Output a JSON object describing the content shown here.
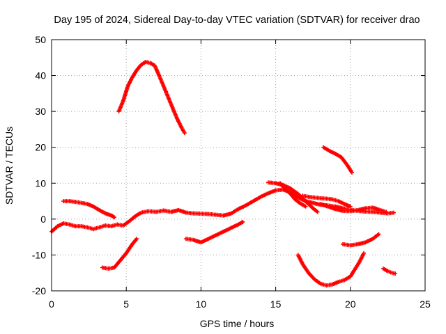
{
  "chart_data": {
    "type": "scatter",
    "title": "Day 195 of 2024, Sidereal Day-to-day VTEC variation (SDTVAR) for receiver drao",
    "xlabel": "GPS time / hours",
    "ylabel": "SDTVAR / TECUs",
    "xlim": [
      0,
      25
    ],
    "ylim": [
      -20,
      50
    ],
    "xticks": [
      0,
      5,
      10,
      15,
      20,
      25
    ],
    "yticks": [
      -20,
      -10,
      0,
      10,
      20,
      30,
      40,
      50
    ],
    "grid": true,
    "legend": "none",
    "marker_color": "#ff0000",
    "series": [
      {
        "name": "arc 1",
        "points": [
          [
            0,
            -3.5
          ],
          [
            0.4,
            -2
          ],
          [
            0.8,
            -1.2
          ],
          [
            1.2,
            -1.5
          ],
          [
            1.6,
            -2
          ],
          [
            2,
            -2
          ],
          [
            2.4,
            -2.3
          ],
          [
            2.8,
            -2.8
          ],
          [
            3.2,
            -2.3
          ],
          [
            3.6,
            -1.8
          ],
          [
            4,
            -2
          ],
          [
            4.4,
            -1.5
          ],
          [
            4.8,
            -1.8
          ],
          [
            5.2,
            -0.6
          ],
          [
            5.6,
            0.8
          ],
          [
            6,
            1.8
          ],
          [
            6.5,
            2.2
          ],
          [
            7,
            2
          ],
          [
            7.5,
            2.4
          ],
          [
            8,
            2
          ],
          [
            8.5,
            2.5
          ],
          [
            9,
            1.8
          ],
          [
            9.5,
            1.6
          ],
          [
            10,
            1.5
          ],
          [
            10.5,
            1.4
          ],
          [
            11,
            1.2
          ],
          [
            11.5,
            1
          ],
          [
            12,
            1.5
          ],
          [
            12.5,
            2.8
          ],
          [
            13,
            3.8
          ],
          [
            13.5,
            5
          ],
          [
            14,
            6.2
          ],
          [
            14.5,
            7.2
          ],
          [
            15,
            8
          ],
          [
            15.5,
            8.2
          ],
          [
            16,
            7.5
          ],
          [
            16.5,
            6
          ],
          [
            17,
            5
          ],
          [
            17.5,
            4.5
          ],
          [
            18,
            4
          ],
          [
            18.5,
            3.8
          ],
          [
            19,
            3.5
          ],
          [
            19.5,
            3
          ],
          [
            20,
            2.6
          ],
          [
            20.5,
            2.3
          ],
          [
            21,
            2.1
          ],
          [
            21.5,
            2
          ],
          [
            22,
            1.8
          ],
          [
            22.5,
            1.6
          ],
          [
            22.9,
            1.8
          ]
        ]
      },
      {
        "name": "arc 2",
        "points": [
          [
            0.8,
            5
          ],
          [
            1.2,
            5
          ],
          [
            1.6,
            4.8
          ],
          [
            2,
            4.5
          ],
          [
            2.4,
            4.2
          ],
          [
            2.8,
            3.5
          ],
          [
            3.2,
            2.5
          ],
          [
            3.6,
            1.6
          ],
          [
            4,
            1
          ],
          [
            4.2,
            0.5
          ]
        ]
      },
      {
        "name": "arc 3",
        "points": [
          [
            3.4,
            -13.5
          ],
          [
            3.8,
            -13.8
          ],
          [
            4.2,
            -13.5
          ],
          [
            4.6,
            -11.5
          ],
          [
            5,
            -9.5
          ],
          [
            5.4,
            -7
          ],
          [
            5.7,
            -5.5
          ]
        ]
      },
      {
        "name": "arc 4",
        "points": [
          [
            4.5,
            30
          ],
          [
            4.8,
            33
          ],
          [
            5.1,
            37
          ],
          [
            5.4,
            39.5
          ],
          [
            5.7,
            41.5
          ],
          [
            6,
            43
          ],
          [
            6.3,
            43.8
          ],
          [
            6.6,
            43.5
          ],
          [
            6.9,
            42.8
          ],
          [
            7.2,
            40
          ],
          [
            7.5,
            37
          ],
          [
            7.8,
            34
          ],
          [
            8.1,
            31
          ],
          [
            8.4,
            28
          ],
          [
            8.7,
            25.5
          ],
          [
            8.9,
            24
          ]
        ]
      },
      {
        "name": "arc 5",
        "points": [
          [
            9,
            -5.5
          ],
          [
            9.5,
            -5.8
          ],
          [
            10,
            -6.5
          ],
          [
            10.5,
            -5.5
          ],
          [
            11,
            -4.5
          ],
          [
            11.5,
            -3.5
          ],
          [
            12,
            -2.5
          ],
          [
            12.5,
            -1.5
          ],
          [
            12.8,
            -0.8
          ]
        ]
      },
      {
        "name": "arc 6",
        "points": [
          [
            14.5,
            10.2
          ],
          [
            15,
            10
          ],
          [
            15.5,
            9.5
          ],
          [
            16,
            8.5
          ],
          [
            16.5,
            7
          ],
          [
            17,
            5
          ],
          [
            17.5,
            3
          ],
          [
            17.8,
            2
          ]
        ]
      },
      {
        "name": "arc 7",
        "points": [
          [
            15.3,
            10
          ],
          [
            15.6,
            8.5
          ],
          [
            16,
            7
          ],
          [
            16.3,
            5.5
          ],
          [
            16.6,
            4.5
          ],
          [
            17,
            3.5
          ]
        ]
      },
      {
        "name": "arc 8",
        "points": [
          [
            16.8,
            6.5
          ],
          [
            17.2,
            6.2
          ],
          [
            17.6,
            6
          ],
          [
            18,
            5.8
          ],
          [
            18.4,
            5.7
          ],
          [
            18.8,
            5.5
          ],
          [
            19.2,
            5
          ],
          [
            19.6,
            4.2
          ],
          [
            20,
            3.5
          ]
        ]
      },
      {
        "name": "arc 9",
        "points": [
          [
            18,
            4.2
          ],
          [
            18.5,
            3.5
          ],
          [
            19,
            2.8
          ],
          [
            19.5,
            2.3
          ],
          [
            20,
            2.2
          ],
          [
            20.5,
            2.5
          ],
          [
            21,
            3
          ],
          [
            21.5,
            3.2
          ],
          [
            22,
            2.5
          ],
          [
            22.4,
            2
          ]
        ]
      },
      {
        "name": "arc 10",
        "points": [
          [
            16.5,
            -10
          ],
          [
            16.8,
            -12.5
          ],
          [
            17.2,
            -15
          ],
          [
            17.6,
            -16.8
          ],
          [
            18,
            -18
          ],
          [
            18.4,
            -18.5
          ],
          [
            18.8,
            -18.2
          ],
          [
            19.2,
            -17.5
          ],
          [
            19.6,
            -17
          ],
          [
            20,
            -16
          ],
          [
            20.3,
            -14
          ],
          [
            20.6,
            -12
          ],
          [
            20.9,
            -9.5
          ]
        ]
      },
      {
        "name": "arc 11",
        "points": [
          [
            18.2,
            20
          ],
          [
            18.6,
            19
          ],
          [
            19,
            18.2
          ],
          [
            19.4,
            17.2
          ],
          [
            19.8,
            15
          ],
          [
            20.1,
            13
          ]
        ]
      },
      {
        "name": "arc 12",
        "points": [
          [
            19.5,
            -7
          ],
          [
            20,
            -7.3
          ],
          [
            20.5,
            -7
          ],
          [
            21,
            -6.5
          ],
          [
            21.5,
            -5.5
          ],
          [
            21.9,
            -4.2
          ]
        ]
      },
      {
        "name": "arc 13",
        "points": [
          [
            22.2,
            -13.8
          ],
          [
            22.5,
            -14.5
          ],
          [
            22.8,
            -15
          ],
          [
            23,
            -15.2
          ]
        ]
      }
    ]
  }
}
